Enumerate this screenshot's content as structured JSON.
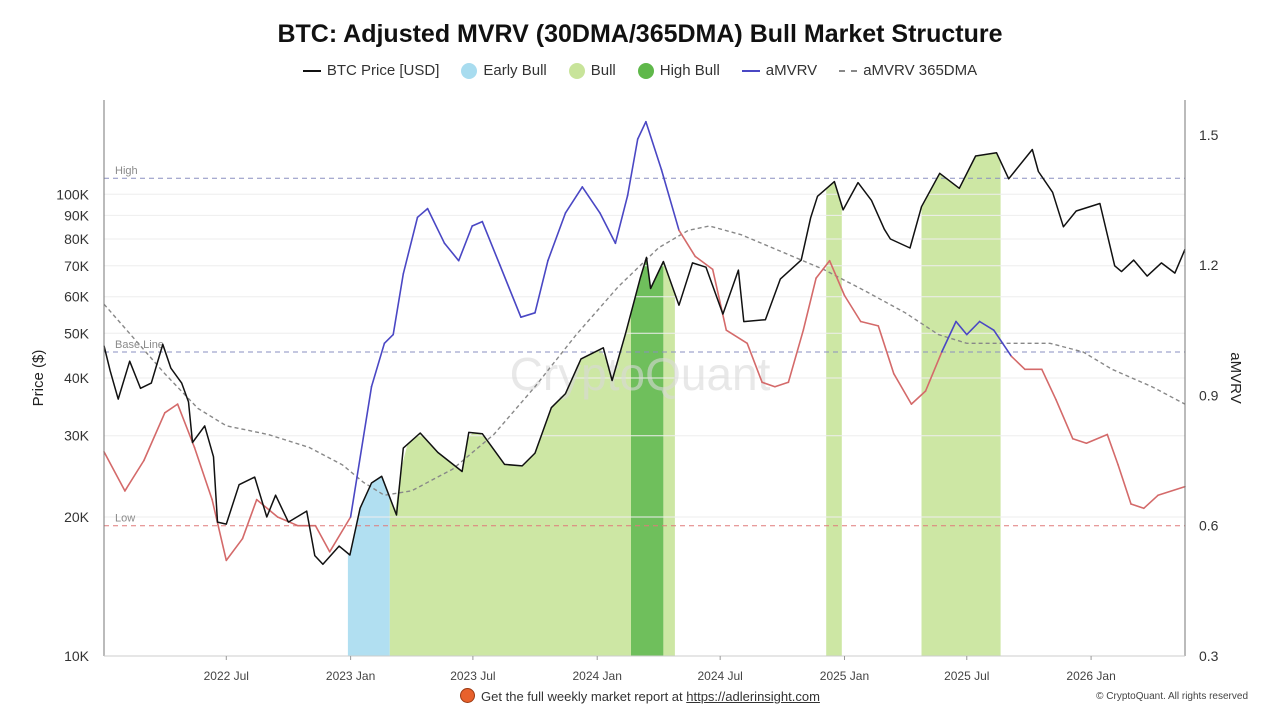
{
  "title": "BTC: Adjusted MVRV (30DMA/365DMA) Bull Market Structure",
  "legend": [
    {
      "label": "BTC Price [USD]",
      "kind": "line",
      "color": "#111111"
    },
    {
      "label": "Early Bull",
      "kind": "dot",
      "color": "#a8dcef"
    },
    {
      "label": "Bull",
      "kind": "dot",
      "color": "#c8e49a"
    },
    {
      "label": "High Bull",
      "kind": "dot",
      "color": "#5fb84a"
    },
    {
      "label": "aMVRV",
      "kind": "line",
      "color": "#4a47c4"
    },
    {
      "label": "aMVRV 365DMA",
      "kind": "dash",
      "color": "#888888"
    }
  ],
  "footer": {
    "text": "Get the full weekly market report at ",
    "link": "https://adlerinsight.com",
    "copyright": "© CryptoQuant. All rights reserved"
  },
  "watermark": "CryptoQuant",
  "chart_data": {
    "type": "line",
    "title": "BTC: Adjusted MVRV (30DMA/365DMA) Bull Market Structure",
    "ylabel": "Price ($)",
    "y2label": "aMVRV",
    "y_scale": "log",
    "ylim": [
      10000,
      160000
    ],
    "y2lim": [
      0.3,
      1.58
    ],
    "x_range": [
      "2022-01-01",
      "2026-05-20"
    ],
    "x_ticks": [
      {
        "date": "2022-07-01",
        "label": "2022 Jul"
      },
      {
        "date": "2023-01-01",
        "label": "2023 Jan"
      },
      {
        "date": "2023-07-01",
        "label": "2023 Jul"
      },
      {
        "date": "2024-01-01",
        "label": "2024 Jan"
      },
      {
        "date": "2024-07-01",
        "label": "2024 Jul"
      },
      {
        "date": "2025-01-01",
        "label": "2025 Jan"
      },
      {
        "date": "2025-07-01",
        "label": "2025 Jul"
      },
      {
        "date": "2026-01-01",
        "label": "2026 Jan"
      }
    ],
    "y_ticks": [
      {
        "value": 10000,
        "label": "10K"
      },
      {
        "value": 20000,
        "label": "20K"
      },
      {
        "value": 30000,
        "label": "30K"
      },
      {
        "value": 40000,
        "label": "40K"
      },
      {
        "value": 50000,
        "label": "50K"
      },
      {
        "value": 60000,
        "label": "60K"
      },
      {
        "value": 70000,
        "label": "70K"
      },
      {
        "value": 80000,
        "label": "80K"
      },
      {
        "value": 90000,
        "label": "90K"
      },
      {
        "value": 100000,
        "label": "100K"
      }
    ],
    "y2_ticks": [
      {
        "value": 0.3,
        "label": "0.3"
      },
      {
        "value": 0.6,
        "label": "0.6"
      },
      {
        "value": 0.9,
        "label": "0.9"
      },
      {
        "value": 1.2,
        "label": "1.2"
      },
      {
        "value": 1.5,
        "label": "1.5"
      }
    ],
    "reference_lines": [
      {
        "label": "High",
        "value": 1.4,
        "color": "#8a8fc0"
      },
      {
        "label": "Base Line",
        "value": 1.0,
        "color": "#8a8fc0"
      },
      {
        "label": "Low",
        "value": 0.6,
        "color": "#e07a7a"
      }
    ],
    "regimes": [
      {
        "name": "Early Bull",
        "start": "2022-12-28",
        "end": "2023-02-28",
        "color": "#a8dcef"
      },
      {
        "name": "Bull",
        "start": "2023-02-28",
        "end": "2024-02-20",
        "color": "#c8e49a"
      },
      {
        "name": "High Bull",
        "start": "2024-02-20",
        "end": "2024-04-08",
        "color": "#5fb84a"
      },
      {
        "name": "Bull",
        "start": "2024-04-08",
        "end": "2024-04-25",
        "color": "#c8e49a"
      },
      {
        "name": "Bull",
        "start": "2024-12-05",
        "end": "2024-12-28",
        "color": "#c8e49a"
      },
      {
        "name": "Bull",
        "start": "2025-04-25",
        "end": "2025-08-20",
        "color": "#c8e49a"
      }
    ],
    "series": [
      {
        "name": "BTC Price [USD]",
        "axis": "left",
        "color": "#111111",
        "points": [
          [
            "2022-01-01",
            47000
          ],
          [
            "2022-01-10",
            41500
          ],
          [
            "2022-01-22",
            36000
          ],
          [
            "2022-02-08",
            43500
          ],
          [
            "2022-02-24",
            38000
          ],
          [
            "2022-03-12",
            39000
          ],
          [
            "2022-03-29",
            47300
          ],
          [
            "2022-04-10",
            42000
          ],
          [
            "2022-04-26",
            39000
          ],
          [
            "2022-05-06",
            35500
          ],
          [
            "2022-05-12",
            29000
          ],
          [
            "2022-05-30",
            31500
          ],
          [
            "2022-06-12",
            27000
          ],
          [
            "2022-06-18",
            19500
          ],
          [
            "2022-07-01",
            19300
          ],
          [
            "2022-07-20",
            23500
          ],
          [
            "2022-08-12",
            24400
          ],
          [
            "2022-08-30",
            20000
          ],
          [
            "2022-09-12",
            22300
          ],
          [
            "2022-10-01",
            19500
          ],
          [
            "2022-10-28",
            20600
          ],
          [
            "2022-11-09",
            16500
          ],
          [
            "2022-11-21",
            15800
          ],
          [
            "2022-12-15",
            17300
          ],
          [
            "2022-12-31",
            16550
          ],
          [
            "2023-01-15",
            20900
          ],
          [
            "2023-02-01",
            23700
          ],
          [
            "2023-02-16",
            24500
          ],
          [
            "2023-03-10",
            20200
          ],
          [
            "2023-03-20",
            28200
          ],
          [
            "2023-04-14",
            30400
          ],
          [
            "2023-05-10",
            27600
          ],
          [
            "2023-06-15",
            25100
          ],
          [
            "2023-06-25",
            30500
          ],
          [
            "2023-07-15",
            30300
          ],
          [
            "2023-08-17",
            26000
          ],
          [
            "2023-09-12",
            25800
          ],
          [
            "2023-10-01",
            27500
          ],
          [
            "2023-10-25",
            34500
          ],
          [
            "2023-11-15",
            37000
          ],
          [
            "2023-12-08",
            44000
          ],
          [
            "2024-01-10",
            46500
          ],
          [
            "2024-01-23",
            39500
          ],
          [
            "2024-02-12",
            50000
          ],
          [
            "2024-03-05",
            66000
          ],
          [
            "2024-03-14",
            73000
          ],
          [
            "2024-03-20",
            62500
          ],
          [
            "2024-04-08",
            71500
          ],
          [
            "2024-05-01",
            57500
          ],
          [
            "2024-05-21",
            71000
          ],
          [
            "2024-06-10",
            69500
          ],
          [
            "2024-07-05",
            55000
          ],
          [
            "2024-07-28",
            68500
          ],
          [
            "2024-08-05",
            53000
          ],
          [
            "2024-09-06",
            53500
          ],
          [
            "2024-09-28",
            65500
          ],
          [
            "2024-10-29",
            72000
          ],
          [
            "2024-11-12",
            89000
          ],
          [
            "2024-11-22",
            99000
          ],
          [
            "2024-12-17",
            106500
          ],
          [
            "2024-12-30",
            92500
          ],
          [
            "2025-01-21",
            106000
          ],
          [
            "2025-02-10",
            97000
          ],
          [
            "2025-03-01",
            84000
          ],
          [
            "2025-03-10",
            80000
          ],
          [
            "2025-04-08",
            76500
          ],
          [
            "2025-04-25",
            94000
          ],
          [
            "2025-05-22",
            111000
          ],
          [
            "2025-06-20",
            103000
          ],
          [
            "2025-07-14",
            121000
          ],
          [
            "2025-08-14",
            123000
          ],
          [
            "2025-09-01",
            108000
          ],
          [
            "2025-10-06",
            125000
          ],
          [
            "2025-10-15",
            112000
          ],
          [
            "2025-11-05",
            101000
          ],
          [
            "2025-11-21",
            85000
          ],
          [
            "2025-12-10",
            92000
          ],
          [
            "2026-01-14",
            95500
          ],
          [
            "2026-02-05",
            70000
          ],
          [
            "2026-02-15",
            68000
          ],
          [
            "2026-03-05",
            72000
          ],
          [
            "2026-03-25",
            66500
          ],
          [
            "2026-04-15",
            71000
          ],
          [
            "2026-05-05",
            67500
          ],
          [
            "2026-05-20",
            76000
          ]
        ]
      },
      {
        "name": "aMVRV",
        "axis": "right",
        "color": "#4a47c4",
        "low_color": "#d46a6a",
        "points": [
          [
            "2022-01-01",
            0.77
          ],
          [
            "2022-02-01",
            0.68
          ],
          [
            "2022-03-01",
            0.75
          ],
          [
            "2022-04-01",
            0.86
          ],
          [
            "2022-04-20",
            0.88
          ],
          [
            "2022-05-15",
            0.78
          ],
          [
            "2022-06-10",
            0.66
          ],
          [
            "2022-07-01",
            0.52
          ],
          [
            "2022-07-25",
            0.57
          ],
          [
            "2022-08-15",
            0.66
          ],
          [
            "2022-09-15",
            0.62
          ],
          [
            "2022-10-15",
            0.6
          ],
          [
            "2022-11-10",
            0.6
          ],
          [
            "2022-12-01",
            0.54
          ],
          [
            "2023-01-01",
            0.62
          ],
          [
            "2023-02-01",
            0.92
          ],
          [
            "2023-02-20",
            1.02
          ],
          [
            "2023-03-05",
            1.04
          ],
          [
            "2023-03-20",
            1.18
          ],
          [
            "2023-04-10",
            1.31
          ],
          [
            "2023-04-25",
            1.33
          ],
          [
            "2023-05-20",
            1.25
          ],
          [
            "2023-06-10",
            1.21
          ],
          [
            "2023-06-30",
            1.29
          ],
          [
            "2023-07-15",
            1.3
          ],
          [
            "2023-08-10",
            1.2
          ],
          [
            "2023-09-10",
            1.08
          ],
          [
            "2023-10-01",
            1.09
          ],
          [
            "2023-10-20",
            1.21
          ],
          [
            "2023-11-15",
            1.32
          ],
          [
            "2023-12-10",
            1.38
          ],
          [
            "2024-01-05",
            1.32
          ],
          [
            "2024-01-28",
            1.25
          ],
          [
            "2024-02-15",
            1.36
          ],
          [
            "2024-03-01",
            1.49
          ],
          [
            "2024-03-13",
            1.53
          ],
          [
            "2024-04-05",
            1.42
          ],
          [
            "2024-05-01",
            1.28
          ],
          [
            "2024-05-25",
            1.22
          ],
          [
            "2024-06-20",
            1.19
          ],
          [
            "2024-07-10",
            1.05
          ],
          [
            "2024-08-10",
            1.02
          ],
          [
            "2024-09-01",
            0.93
          ],
          [
            "2024-09-20",
            0.92
          ],
          [
            "2024-10-10",
            0.93
          ],
          [
            "2024-11-01",
            1.05
          ],
          [
            "2024-11-20",
            1.17
          ],
          [
            "2024-12-10",
            1.21
          ],
          [
            "2025-01-01",
            1.13
          ],
          [
            "2025-01-25",
            1.07
          ],
          [
            "2025-02-20",
            1.06
          ],
          [
            "2025-03-15",
            0.95
          ],
          [
            "2025-04-10",
            0.88
          ],
          [
            "2025-05-01",
            0.91
          ],
          [
            "2025-05-25",
            1.0
          ],
          [
            "2025-06-15",
            1.07
          ],
          [
            "2025-07-01",
            1.04
          ],
          [
            "2025-07-20",
            1.07
          ],
          [
            "2025-08-10",
            1.05
          ],
          [
            "2025-09-05",
            0.99
          ],
          [
            "2025-09-25",
            0.96
          ],
          [
            "2025-10-20",
            0.96
          ],
          [
            "2025-11-10",
            0.89
          ],
          [
            "2025-12-05",
            0.8
          ],
          [
            "2025-12-25",
            0.79
          ],
          [
            "2026-01-25",
            0.81
          ],
          [
            "2026-02-10",
            0.74
          ],
          [
            "2026-03-01",
            0.65
          ],
          [
            "2026-03-20",
            0.64
          ],
          [
            "2026-04-10",
            0.67
          ],
          [
            "2026-05-20",
            0.69
          ]
        ]
      },
      {
        "name": "aMVRV 365DMA",
        "axis": "right",
        "color": "#888888",
        "dashed": true,
        "points": [
          [
            "2022-01-01",
            1.11
          ],
          [
            "2022-02-15",
            1.03
          ],
          [
            "2022-04-01",
            0.95
          ],
          [
            "2022-05-20",
            0.87
          ],
          [
            "2022-07-01",
            0.83
          ],
          [
            "2022-09-01",
            0.81
          ],
          [
            "2022-11-01",
            0.78
          ],
          [
            "2022-12-20",
            0.74
          ],
          [
            "2023-01-20",
            0.7
          ],
          [
            "2023-02-20",
            0.67
          ],
          [
            "2023-04-01",
            0.68
          ],
          [
            "2023-06-01",
            0.73
          ],
          [
            "2023-08-01",
            0.81
          ],
          [
            "2023-10-01",
            0.92
          ],
          [
            "2023-12-01",
            1.04
          ],
          [
            "2024-02-01",
            1.15
          ],
          [
            "2024-04-01",
            1.24
          ],
          [
            "2024-05-15",
            1.28
          ],
          [
            "2024-06-15",
            1.29
          ],
          [
            "2024-08-01",
            1.27
          ],
          [
            "2024-10-01",
            1.23
          ],
          [
            "2024-12-01",
            1.19
          ],
          [
            "2025-02-01",
            1.14
          ],
          [
            "2025-04-01",
            1.09
          ],
          [
            "2025-05-20",
            1.04
          ],
          [
            "2025-07-01",
            1.02
          ],
          [
            "2025-09-01",
            1.02
          ],
          [
            "2025-11-01",
            1.02
          ],
          [
            "2025-12-20",
            1.0
          ],
          [
            "2026-02-01",
            0.96
          ],
          [
            "2026-04-01",
            0.92
          ],
          [
            "2026-05-20",
            0.88
          ]
        ]
      }
    ]
  }
}
